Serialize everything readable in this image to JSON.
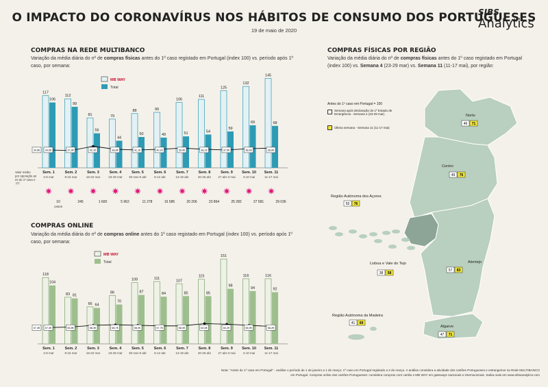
{
  "header": {
    "title": "O IMPACTO DO CORONAVÍRUS NOS HÁBITOS DE CONSUMO DOS PORTUGUESES",
    "date": "19 de maio de 2020",
    "logo_sibs": "SIBS",
    "logo_analytics": "Analytics"
  },
  "multibanco": {
    "title": "COMPRAS NA REDE MULTIBANCO",
    "desc_a": "Variação da média diária do nº de ",
    "desc_b": "compras físicas",
    "desc_c": " antes do 1º caso registado em Portugal (index 100) vs. período após 1º caso, por semana:",
    "avg_label": "Valor médio por operação antes do 1º caso em PT",
    "cases_intro": "casos",
    "legend_total": "Total",
    "legend_mbway": "MB WAY"
  },
  "online": {
    "title": "COMPRAS ONLINE",
    "desc_a": "Variação da média diária do nº de ",
    "desc_b": "compras online",
    "desc_c": " antes do 1º caso registado em Portugal (index 100) vs. período após 1º caso, por semana:",
    "legend_total": "Total",
    "legend_mbway": "MB WAY"
  },
  "regions": {
    "title": "COMPRAS FÍSICAS POR REGIÃO",
    "desc_a": "Variação da média diária do nº de ",
    "desc_b": "compras físicas",
    "desc_c": " antes do 1º caso registado em Portugal (index 100) vs. ",
    "desc_d": "Semana 4",
    "desc_e": " (23-29 mar) vs. ",
    "desc_f": "Semana 11",
    "desc_g": " (11-17 mai), por região:",
    "legend_base": "Antes do 1º caso em Portugal = 100",
    "legend_w4": "Semana após declaração do 1º Estado de Emergência - Semana 4 (23-29 mar)",
    "legend_w11": "Última semana - Semana 11 (11-17 mai)",
    "items": [
      {
        "name": "Norte",
        "w4": "46",
        "w11": "71"
      },
      {
        "name": "Centro",
        "w4": "49",
        "w11": "76"
      },
      {
        "name": "Região Autónoma dos Açores",
        "w4": "55",
        "w11": "76"
      },
      {
        "name": "Lisboa e Vale do Tejo",
        "w4": "38",
        "w11": "58"
      },
      {
        "name": "Alentejo",
        "w4": "57",
        "w11": "83"
      },
      {
        "name": "Região Autónoma da Madeira",
        "w4": "41",
        "w11": "69"
      },
      {
        "name": "Algarve",
        "w4": "47",
        "w11": "71"
      }
    ]
  },
  "footnote": "Nota: \"Antes do 1º caso em Portugal\" - análise o período de 1 de janeiro a 1 de março; 1º caso em Portugal registado a 2 de março. A análise considera a atividade dos cartões Portugueses e estrangeiros na Rede MULTIBANCO em Portugal. Compras online dos cartões Portugueses: considera compras com cartão e MB WAY em gateways nacionais e internacionais. Saiba mais em www.sibsanalytics.com",
  "colors": {
    "total": "#2e9bb5",
    "total_online": "#9dbf8e",
    "mbway_fill": "#e4f1f4",
    "mbway_online_fill": "#eef2e6",
    "map": "#b7cfc0",
    "map_dark": "#8aa596",
    "accent_pink": "#e0187a",
    "yellow": "#f1e63c"
  },
  "chart_data": [
    {
      "type": "bar",
      "title": "COMPRAS NA REDE MULTIBANCO",
      "categories": [
        "Sem. 1",
        "Sem. 2",
        "Sem. 3",
        "Sem. 4",
        "Sem. 5",
        "Sem. 6",
        "Sem. 7",
        "Sem. 8",
        "Sem. 9",
        "Sem. 10",
        "Sem. 11"
      ],
      "subcategories": [
        "2-8 mar",
        "9-15 mar",
        "16-22 mar",
        "23-29 mar",
        "30 mar-5 abr",
        "6-12 abr",
        "13-19 abr",
        "20-26 abr",
        "27 abr-3 mai",
        "4-10 mai",
        "11-17 mai"
      ],
      "series": [
        {
          "name": "MB WAY",
          "values": [
            117,
            112,
            81,
            79,
            88,
            90,
            106,
            111,
            125,
            132,
            145
          ]
        },
        {
          "name": "Total",
          "values": [
            106,
            99,
            56,
            44,
            50,
            49,
            51,
            54,
            59,
            69,
            68
          ]
        }
      ],
      "avg_line": {
        "values": [
          29,
          28,
          35,
          30,
          29,
          30,
          32,
          30,
          29,
          31,
          32
        ],
        "labels": [
          "34,5€",
          "37,9€",
          "42,1€",
          "38,8€",
          "41,1€",
          "40,1€",
          "39,9€",
          "38,1€",
          "37,5€",
          "38,6€",
          "38,6€"
        ],
        "base_label": "34,5€"
      },
      "cases": [
        "10",
        "245",
        "1 600",
        "5 962",
        "11 278",
        "16 585",
        "20 206",
        "23 864",
        "25 282",
        "27 581",
        "29 036"
      ],
      "ylim": [
        0,
        160
      ]
    },
    {
      "type": "bar",
      "title": "COMPRAS ONLINE",
      "categories": [
        "Sem. 1",
        "Sem. 2",
        "Sem. 3",
        "Sem. 4",
        "Sem. 5",
        "Sem. 6",
        "Sem. 7",
        "Sem. 8",
        "Sem. 9",
        "Sem. 10",
        "Sem. 11"
      ],
      "subcategories": [
        "2-8 mar",
        "9-15 mar",
        "16-22 mar",
        "23-29 mar",
        "30 mar-5 abr",
        "6-12 abr",
        "13-19 abr",
        "20-26 abr",
        "27 abr-3 mai",
        "4-10 mai",
        "11-17 mai"
      ],
      "series": [
        {
          "name": "MB WAY",
          "values": [
            118,
            83,
            66,
            86,
            109,
            111,
            107,
            115,
            151,
            116,
            116
          ]
        },
        {
          "name": "Total",
          "values": [
            104,
            81,
            64,
            70,
            87,
            84,
            85,
            85,
            98,
            94,
            92
          ]
        }
      ],
      "avg_line": {
        "values": [
          29,
          30,
          33,
          34,
          33,
          32,
          32,
          36,
          35,
          33,
          31
        ],
        "labels": [
          "57,3€",
          "55,8€",
          "58,3€",
          "58,7€",
          "58,0€",
          "57,7€",
          "58,0€",
          "60,6€",
          "60,2€",
          "58,9€",
          "58,2€"
        ],
        "base_label": "57,3€"
      },
      "ylim": [
        0,
        160
      ]
    }
  ]
}
